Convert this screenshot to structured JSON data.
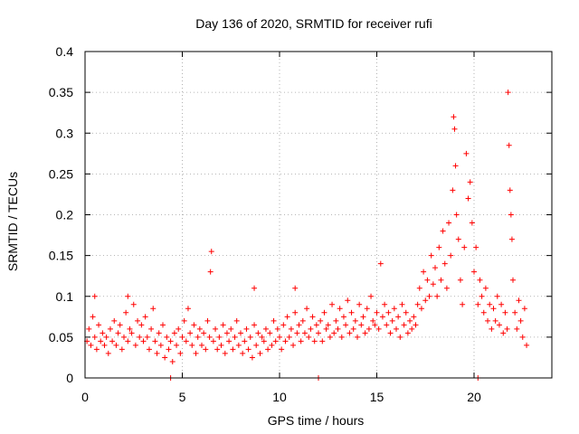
{
  "chart_data": {
    "type": "scatter",
    "title": "Day 136 of 2020, SRMTID for receiver rufi",
    "xlabel": "GPS time / hours",
    "ylabel": "SRMTID / TECUs",
    "xlim": [
      0,
      24
    ],
    "ylim": [
      0,
      0.4
    ],
    "xticks": [
      0,
      5,
      10,
      15,
      20
    ],
    "xtick_labels": [
      "0",
      "5",
      "10",
      "15",
      "20"
    ],
    "yticks": [
      0,
      0.05,
      0.1,
      0.15,
      0.2,
      0.25,
      0.3,
      0.35,
      0.4
    ],
    "ytick_labels": [
      "0",
      "0.05",
      "0.1",
      "0.15",
      "0.2",
      "0.25",
      "0.3",
      "0.35",
      "0.4"
    ],
    "grid": true,
    "marker": "+",
    "color": "#ff0000",
    "series": [
      {
        "name": "SRMTID",
        "points": [
          [
            0.1,
            0.045
          ],
          [
            0.2,
            0.06
          ],
          [
            0.3,
            0.04
          ],
          [
            0.4,
            0.075
          ],
          [
            0.5,
            0.05
          ],
          [
            0.6,
            0.035
          ],
          [
            0.7,
            0.065
          ],
          [
            0.8,
            0.045
          ],
          [
            0.9,
            0.055
          ],
          [
            1.0,
            0.04
          ],
          [
            1.1,
            0.05
          ],
          [
            1.2,
            0.03
          ],
          [
            1.3,
            0.06
          ],
          [
            1.4,
            0.045
          ],
          [
            1.5,
            0.07
          ],
          [
            1.6,
            0.04
          ],
          [
            1.7,
            0.055
          ],
          [
            1.8,
            0.065
          ],
          [
            1.9,
            0.035
          ],
          [
            2.0,
            0.05
          ],
          [
            2.1,
            0.08
          ],
          [
            2.2,
            0.045
          ],
          [
            2.3,
            0.06
          ],
          [
            2.4,
            0.055
          ],
          [
            2.5,
            0.09
          ],
          [
            2.6,
            0.04
          ],
          [
            2.7,
            0.07
          ],
          [
            2.8,
            0.05
          ],
          [
            2.9,
            0.065
          ],
          [
            3.0,
            0.045
          ],
          [
            3.1,
            0.075
          ],
          [
            3.2,
            0.05
          ],
          [
            3.3,
            0.035
          ],
          [
            3.4,
            0.06
          ],
          [
            3.5,
            0.085
          ],
          [
            3.6,
            0.045
          ],
          [
            3.7,
            0.03
          ],
          [
            3.8,
            0.055
          ],
          [
            3.9,
            0.04
          ],
          [
            4.0,
            0.065
          ],
          [
            4.1,
            0.025
          ],
          [
            4.2,
            0.05
          ],
          [
            4.3,
            0.035
          ],
          [
            4.4,
            0.045
          ],
          [
            4.5,
            0.02
          ],
          [
            4.6,
            0.055
          ],
          [
            4.7,
            0.04
          ],
          [
            4.8,
            0.06
          ],
          [
            4.9,
            0.03
          ],
          [
            5.0,
            0.05
          ],
          [
            5.1,
            0.07
          ],
          [
            5.2,
            0.045
          ],
          [
            5.3,
            0.085
          ],
          [
            5.4,
            0.055
          ],
          [
            5.5,
            0.04
          ],
          [
            5.6,
            0.065
          ],
          [
            5.7,
            0.03
          ],
          [
            5.8,
            0.05
          ],
          [
            5.9,
            0.06
          ],
          [
            6.0,
            0.04
          ],
          [
            6.1,
            0.055
          ],
          [
            6.2,
            0.035
          ],
          [
            6.3,
            0.07
          ],
          [
            6.4,
            0.05
          ],
          [
            6.45,
            0.13
          ],
          [
            6.5,
            0.155
          ],
          [
            6.6,
            0.045
          ],
          [
            6.7,
            0.06
          ],
          [
            6.8,
            0.035
          ],
          [
            6.9,
            0.05
          ],
          [
            7.0,
            0.04
          ],
          [
            7.1,
            0.065
          ],
          [
            7.2,
            0.03
          ],
          [
            7.3,
            0.055
          ],
          [
            7.4,
            0.045
          ],
          [
            7.5,
            0.06
          ],
          [
            7.6,
            0.035
          ],
          [
            7.7,
            0.05
          ],
          [
            7.8,
            0.07
          ],
          [
            7.9,
            0.04
          ],
          [
            8.0,
            0.055
          ],
          [
            8.1,
            0.03
          ],
          [
            8.2,
            0.045
          ],
          [
            8.3,
            0.06
          ],
          [
            8.4,
            0.035
          ],
          [
            8.5,
            0.05
          ],
          [
            8.6,
            0.025
          ],
          [
            8.7,
            0.065
          ],
          [
            8.8,
            0.04
          ],
          [
            8.9,
            0.055
          ],
          [
            9.0,
            0.03
          ],
          [
            9.1,
            0.05
          ],
          [
            9.2,
            0.045
          ],
          [
            9.3,
            0.06
          ],
          [
            9.4,
            0.035
          ],
          [
            9.5,
            0.055
          ],
          [
            9.6,
            0.04
          ],
          [
            9.7,
            0.07
          ],
          [
            9.8,
            0.045
          ],
          [
            9.9,
            0.06
          ],
          [
            10.0,
            0.05
          ],
          [
            10.1,
            0.035
          ],
          [
            10.2,
            0.065
          ],
          [
            10.3,
            0.045
          ],
          [
            10.4,
            0.075
          ],
          [
            10.5,
            0.05
          ],
          [
            10.6,
            0.06
          ],
          [
            10.7,
            0.04
          ],
          [
            10.8,
            0.08
          ],
          [
            10.9,
            0.055
          ],
          [
            11.0,
            0.065
          ],
          [
            11.1,
            0.045
          ],
          [
            11.2,
            0.07
          ],
          [
            11.3,
            0.055
          ],
          [
            11.4,
            0.085
          ],
          [
            11.5,
            0.05
          ],
          [
            11.6,
            0.06
          ],
          [
            11.7,
            0.075
          ],
          [
            11.8,
            0.045
          ],
          [
            11.9,
            0.065
          ],
          [
            12.0,
            0.055
          ],
          [
            12.1,
            0.07
          ],
          [
            12.2,
            0.045
          ],
          [
            12.3,
            0.08
          ],
          [
            12.4,
            0.06
          ],
          [
            12.5,
            0.065
          ],
          [
            12.6,
            0.05
          ],
          [
            12.7,
            0.09
          ],
          [
            12.8,
            0.055
          ],
          [
            12.9,
            0.07
          ],
          [
            13.0,
            0.06
          ],
          [
            13.1,
            0.085
          ],
          [
            13.2,
            0.05
          ],
          [
            13.3,
            0.075
          ],
          [
            13.4,
            0.065
          ],
          [
            13.5,
            0.095
          ],
          [
            13.6,
            0.055
          ],
          [
            13.7,
            0.08
          ],
          [
            13.8,
            0.06
          ],
          [
            13.9,
            0.07
          ],
          [
            14.0,
            0.05
          ],
          [
            14.1,
            0.09
          ],
          [
            14.2,
            0.065
          ],
          [
            14.3,
            0.075
          ],
          [
            14.4,
            0.055
          ],
          [
            14.5,
            0.085
          ],
          [
            14.6,
            0.06
          ],
          [
            14.7,
            0.1
          ],
          [
            14.8,
            0.07
          ],
          [
            14.9,
            0.065
          ],
          [
            15.0,
            0.08
          ],
          [
            15.1,
            0.06
          ],
          [
            15.2,
            0.14
          ],
          [
            15.3,
            0.075
          ],
          [
            15.4,
            0.09
          ],
          [
            15.5,
            0.065
          ],
          [
            15.6,
            0.08
          ],
          [
            15.7,
            0.055
          ],
          [
            15.8,
            0.07
          ],
          [
            15.9,
            0.085
          ],
          [
            16.0,
            0.06
          ],
          [
            16.1,
            0.075
          ],
          [
            16.2,
            0.05
          ],
          [
            16.3,
            0.09
          ],
          [
            16.4,
            0.065
          ],
          [
            16.5,
            0.08
          ],
          [
            16.6,
            0.055
          ],
          [
            16.7,
            0.07
          ],
          [
            16.8,
            0.06
          ],
          [
            16.9,
            0.075
          ],
          [
            17.0,
            0.065
          ],
          [
            17.1,
            0.09
          ],
          [
            17.2,
            0.11
          ],
          [
            17.3,
            0.085
          ],
          [
            17.4,
            0.13
          ],
          [
            17.5,
            0.095
          ],
          [
            17.6,
            0.12
          ],
          [
            17.7,
            0.1
          ],
          [
            17.8,
            0.15
          ],
          [
            17.9,
            0.115
          ],
          [
            18.0,
            0.135
          ],
          [
            18.1,
            0.1
          ],
          [
            18.2,
            0.16
          ],
          [
            18.3,
            0.12
          ],
          [
            18.4,
            0.18
          ],
          [
            18.5,
            0.14
          ],
          [
            18.6,
            0.11
          ],
          [
            18.7,
            0.19
          ],
          [
            18.8,
            0.15
          ],
          [
            18.9,
            0.23
          ],
          [
            18.95,
            0.32
          ],
          [
            19.0,
            0.305
          ],
          [
            19.05,
            0.26
          ],
          [
            19.1,
            0.2
          ],
          [
            19.2,
            0.17
          ],
          [
            19.3,
            0.12
          ],
          [
            19.4,
            0.09
          ],
          [
            19.5,
            0.16
          ],
          [
            19.6,
            0.275
          ],
          [
            19.7,
            0.22
          ],
          [
            19.8,
            0.24
          ],
          [
            19.9,
            0.19
          ],
          [
            20.0,
            0.13
          ],
          [
            20.1,
            0.16
          ],
          [
            20.2,
            0.09
          ],
          [
            20.3,
            0.12
          ],
          [
            20.4,
            0.1
          ],
          [
            20.5,
            0.08
          ],
          [
            20.6,
            0.11
          ],
          [
            20.7,
            0.07
          ],
          [
            20.8,
            0.09
          ],
          [
            20.9,
            0.06
          ],
          [
            21.0,
            0.085
          ],
          [
            21.1,
            0.07
          ],
          [
            21.2,
            0.1
          ],
          [
            21.3,
            0.065
          ],
          [
            21.4,
            0.09
          ],
          [
            21.5,
            0.055
          ],
          [
            21.6,
            0.08
          ],
          [
            21.7,
            0.06
          ],
          [
            21.75,
            0.35
          ],
          [
            21.8,
            0.285
          ],
          [
            21.85,
            0.23
          ],
          [
            21.9,
            0.2
          ],
          [
            21.95,
            0.17
          ],
          [
            22.0,
            0.12
          ],
          [
            22.1,
            0.08
          ],
          [
            22.2,
            0.06
          ],
          [
            22.3,
            0.095
          ],
          [
            22.4,
            0.07
          ],
          [
            22.5,
            0.05
          ],
          [
            22.6,
            0.085
          ],
          [
            22.7,
            0.04
          ],
          [
            12.0,
            0.0
          ],
          [
            20.2,
            0.0
          ],
          [
            4.4,
            0.0
          ],
          [
            0.5,
            0.1
          ],
          [
            2.2,
            0.1
          ],
          [
            10.8,
            0.11
          ],
          [
            8.7,
            0.11
          ]
        ]
      }
    ]
  }
}
